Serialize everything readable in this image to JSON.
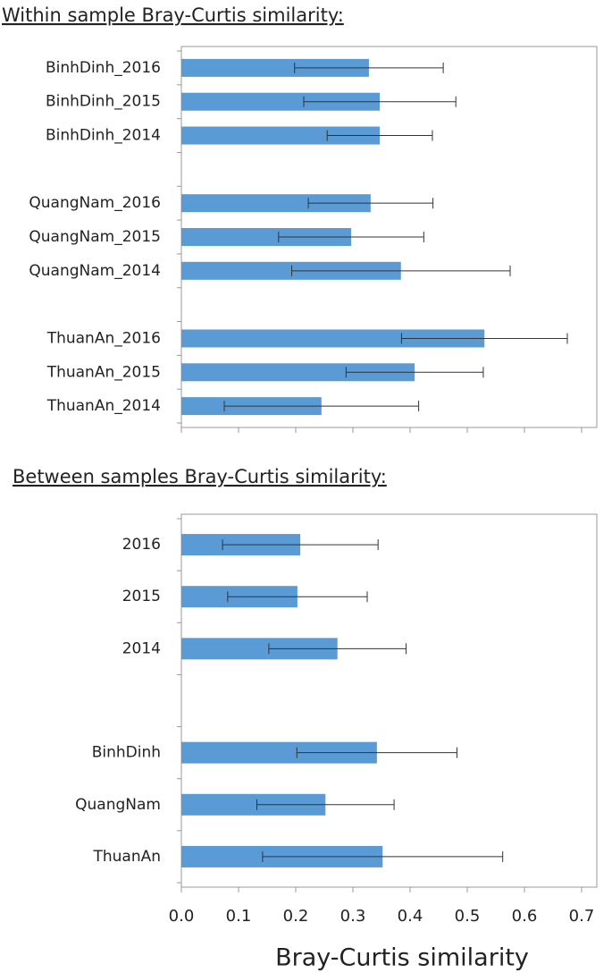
{
  "chart_data": [
    {
      "type": "bar",
      "orientation": "horizontal",
      "title": "Within sample Bray-Curtis similarity:",
      "categories": [
        "BinhDinh_2016",
        "BinhDinh_2015",
        "BinhDinh_2014",
        null,
        "QuangNam_2016",
        "QuangNam_2015",
        "QuangNam_2014",
        null,
        "ThuanAn_2016",
        "ThuanAn_2015",
        "ThuanAn_2014"
      ],
      "values": [
        0.328,
        0.347,
        0.347,
        null,
        0.331,
        0.297,
        0.384,
        null,
        0.53,
        0.408,
        0.245
      ],
      "errors": [
        0.13,
        0.133,
        0.092,
        null,
        0.109,
        0.127,
        0.191,
        null,
        0.145,
        0.12,
        0.17
      ],
      "color": "#5b9bd5",
      "xlim": [
        0,
        0.7
      ],
      "xticks": [
        0,
        0.1,
        0.2,
        0.3,
        0.4,
        0.5,
        0.6,
        0.7
      ]
    },
    {
      "type": "bar",
      "orientation": "horizontal",
      "title": "Between samples Bray-Curtis similarity:",
      "categories": [
        "2016",
        "2015",
        "2014",
        null,
        "BinhDinh",
        "QuangNam",
        "ThuanAn"
      ],
      "values": [
        0.208,
        0.203,
        0.273,
        null,
        0.342,
        0.252,
        0.352
      ],
      "errors": [
        0.136,
        0.122,
        0.12,
        null,
        0.14,
        0.12,
        0.21
      ],
      "color": "#5b9bd5",
      "xlim": [
        0,
        0.7
      ],
      "xticks": [
        {
          "value": 0,
          "label": "0.0"
        },
        {
          "value": 0.1,
          "label": "0.1"
        },
        {
          "value": 0.2,
          "label": "0.2"
        },
        {
          "value": 0.3,
          "label": "0.3"
        },
        {
          "value": 0.4,
          "label": "0.4"
        },
        {
          "value": 0.5,
          "label": "0.5"
        },
        {
          "value": 0.6,
          "label": "0.6"
        },
        {
          "value": 0.7,
          "label": "0.7"
        }
      ],
      "x_label": "Bray-Curtis similarity"
    }
  ]
}
